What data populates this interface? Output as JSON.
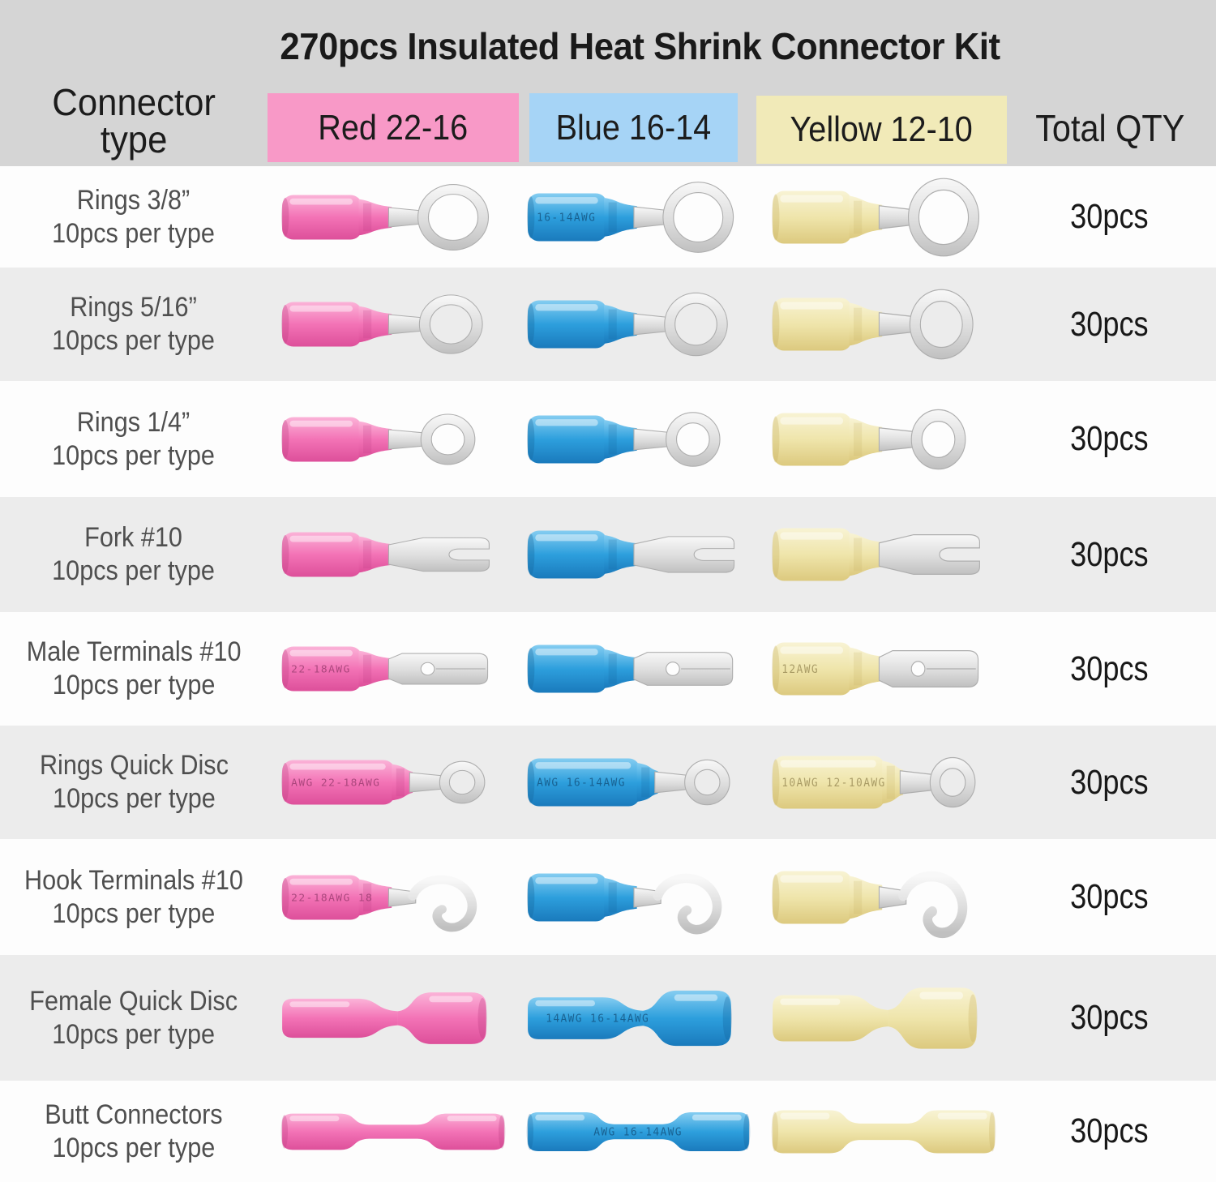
{
  "title": "270pcs Insulated Heat Shrink Connector Kit",
  "header": {
    "connector_type_line1": "Connector",
    "connector_type_line2": "type",
    "columns": [
      {
        "key": "red",
        "label": "Red 22-16"
      },
      {
        "key": "blue",
        "label": "Blue 16-14"
      },
      {
        "key": "yellow",
        "label": "Yellow 12-10"
      }
    ],
    "total_qty_label": "Total QTY"
  },
  "colors": {
    "header_bg": "#d5d5d5",
    "row_light": "#fdfdfd",
    "row_dark": "#ececec",
    "red_patch": "#f899c7",
    "blue_patch": "#a6d4f6",
    "yellow_patch": "#f1eab8",
    "title_text": "#1a1a1a",
    "header_text": "#1c1c1c",
    "label_text": "#4f4f4f",
    "qty_text": "#181818"
  },
  "connector_palettes": {
    "red": {
      "hi": "#fbb3d8",
      "main": "#f373b6",
      "dark": "#dd4f9a",
      "deep": "#b83a7e",
      "print": "#7c2a58"
    },
    "blue": {
      "hi": "#85cdf1",
      "main": "#2d9fdd",
      "dark": "#1a7abc",
      "deep": "#135f96",
      "print": "#0c3a61"
    },
    "yellow": {
      "hi": "#f8f3d4",
      "main": "#efe5ab",
      "dark": "#dcc97e",
      "deep": "#c4ad5e",
      "print": "#7d6d3a"
    },
    "metal": {
      "hi": "#f8f8f8",
      "main": "#dddddd",
      "dark": "#c0c0c0",
      "stroke": "#aeaeae"
    }
  },
  "rows": [
    {
      "type": "Rings 3/8”",
      "per_type": "10pcs per type",
      "shape": "ring_lg",
      "qty": "30pcs",
      "prints": {
        "red": "",
        "blue": "16-14AWG",
        "yellow": ""
      }
    },
    {
      "type": "Rings 5/16”",
      "per_type": "10pcs per type",
      "shape": "ring_md",
      "qty": "30pcs",
      "prints": {
        "red": "",
        "blue": "",
        "yellow": ""
      }
    },
    {
      "type": "Rings 1/4”",
      "per_type": "10pcs per type",
      "shape": "ring_sm",
      "qty": "30pcs",
      "prints": {
        "red": "",
        "blue": "",
        "yellow": ""
      }
    },
    {
      "type": "Fork #10",
      "per_type": "10pcs per type",
      "shape": "fork",
      "qty": "30pcs",
      "prints": {
        "red": "",
        "blue": "",
        "yellow": ""
      }
    },
    {
      "type": "Male Terminals #10",
      "per_type": "10pcs per type",
      "shape": "male",
      "qty": "30pcs",
      "prints": {
        "red": "22-18AWG",
        "blue": "",
        "yellow": "12AWG"
      }
    },
    {
      "type": "Rings Quick Disc",
      "per_type": "10pcs per type",
      "shape": "ring_qd",
      "qty": "30pcs",
      "prints": {
        "red": "AWG 22-18AWG",
        "blue": "AWG 16-14AWG",
        "yellow": "10AWG 12-10AWG"
      }
    },
    {
      "type": "Hook Terminals #10",
      "per_type": "10pcs per type",
      "shape": "hook",
      "qty": "30pcs",
      "prints": {
        "red": "22-18AWG 18",
        "blue": "",
        "yellow": ""
      }
    },
    {
      "type": "Female Quick Disc",
      "per_type": "10pcs per type",
      "shape": "female_qd",
      "qty": "30pcs",
      "prints": {
        "red": "",
        "blue": "14AWG 16-14AWG",
        "yellow": ""
      }
    },
    {
      "type": "Butt Connectors",
      "per_type": "10pcs per type",
      "shape": "butt",
      "qty": "30pcs",
      "prints": {
        "red": "",
        "blue": "AWG 16-14AWG",
        "yellow": ""
      }
    }
  ]
}
